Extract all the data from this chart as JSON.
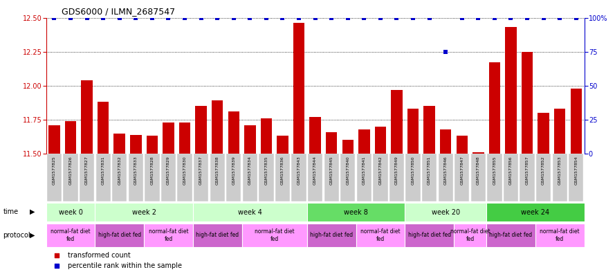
{
  "title": "GDS6000 / ILMN_2687547",
  "samples": [
    "GSM1577825",
    "GSM1577826",
    "GSM1577827",
    "GSM1577831",
    "GSM1577832",
    "GSM1577833",
    "GSM1577828",
    "GSM1577829",
    "GSM1577830",
    "GSM1577837",
    "GSM1577838",
    "GSM1577839",
    "GSM1577834",
    "GSM1577835",
    "GSM1577836",
    "GSM1577843",
    "GSM1577844",
    "GSM1577845",
    "GSM1577840",
    "GSM1577841",
    "GSM1577842",
    "GSM1577849",
    "GSM1577850",
    "GSM1577851",
    "GSM1577846",
    "GSM1577847",
    "GSM1577848",
    "GSM1577855",
    "GSM1577856",
    "GSM1577857",
    "GSM1577852",
    "GSM1577853",
    "GSM1577854"
  ],
  "bar_values": [
    11.71,
    11.74,
    12.04,
    11.88,
    11.65,
    11.64,
    11.63,
    11.73,
    11.73,
    11.85,
    11.89,
    11.81,
    11.71,
    11.76,
    11.63,
    12.46,
    11.77,
    11.66,
    11.6,
    11.68,
    11.7,
    11.97,
    11.83,
    11.85,
    11.68,
    11.63,
    11.51,
    12.17,
    12.43,
    12.25,
    11.8,
    11.83,
    11.98
  ],
  "percentile_values": [
    100,
    100,
    100,
    100,
    100,
    100,
    100,
    100,
    100,
    100,
    100,
    100,
    100,
    100,
    100,
    100,
    100,
    100,
    100,
    100,
    100,
    100,
    100,
    100,
    75,
    100,
    100,
    100,
    100,
    100,
    100,
    100,
    100
  ],
  "ylim_left": [
    11.5,
    12.5
  ],
  "ylim_right": [
    0,
    100
  ],
  "yticks_left": [
    11.5,
    11.75,
    12.0,
    12.25,
    12.5
  ],
  "yticks_right": [
    0,
    25,
    50,
    75,
    100
  ],
  "bar_color": "#cc0000",
  "percentile_color": "#0000cc",
  "tick_label_bg": "#cccccc",
  "time_groups": [
    {
      "label": "week 0",
      "start": 0,
      "end": 3,
      "color": "#ccffcc"
    },
    {
      "label": "week 2",
      "start": 3,
      "end": 9,
      "color": "#ccffcc"
    },
    {
      "label": "week 4",
      "start": 9,
      "end": 16,
      "color": "#ccffcc"
    },
    {
      "label": "week 8",
      "start": 16,
      "end": 22,
      "color": "#66dd66"
    },
    {
      "label": "week 20",
      "start": 22,
      "end": 27,
      "color": "#ccffcc"
    },
    {
      "label": "week 24",
      "start": 27,
      "end": 33,
      "color": "#44cc44"
    }
  ],
  "protocol_groups": [
    {
      "label": "normal-fat diet\nfed",
      "start": 0,
      "end": 3,
      "color": "#ff99ff"
    },
    {
      "label": "high-fat diet fed",
      "start": 3,
      "end": 6,
      "color": "#cc66cc"
    },
    {
      "label": "normal-fat diet\nfed",
      "start": 6,
      "end": 9,
      "color": "#ff99ff"
    },
    {
      "label": "high-fat diet fed",
      "start": 9,
      "end": 12,
      "color": "#cc66cc"
    },
    {
      "label": "normal-fat diet\nfed",
      "start": 12,
      "end": 16,
      "color": "#ff99ff"
    },
    {
      "label": "high-fat diet fed",
      "start": 16,
      "end": 19,
      "color": "#cc66cc"
    },
    {
      "label": "normal-fat diet\nfed",
      "start": 19,
      "end": 22,
      "color": "#ff99ff"
    },
    {
      "label": "high-fat diet fed",
      "start": 22,
      "end": 25,
      "color": "#cc66cc"
    },
    {
      "label": "normal-fat diet\nfed",
      "start": 25,
      "end": 27,
      "color": "#ff99ff"
    },
    {
      "label": "high-fat diet fed",
      "start": 27,
      "end": 30,
      "color": "#cc66cc"
    },
    {
      "label": "normal-fat diet\nfed",
      "start": 30,
      "end": 33,
      "color": "#ff99ff"
    }
  ],
  "background_color": "#ffffff"
}
